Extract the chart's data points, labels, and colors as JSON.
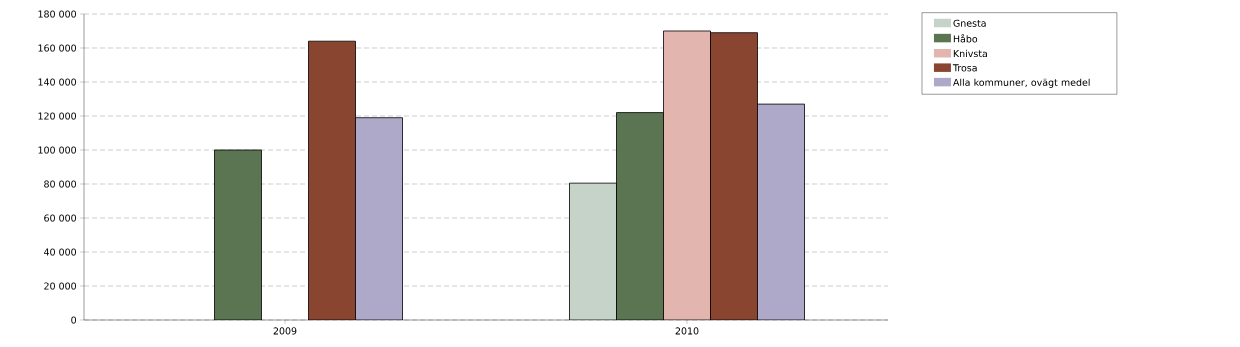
{
  "chart_data": {
    "type": "bar",
    "categories": [
      "2009",
      "2010"
    ],
    "series": [
      {
        "name": "Gnesta",
        "color": "#c5d3c8",
        "values": [
          null,
          80500
        ]
      },
      {
        "name": "Håbo",
        "color": "#5b7553",
        "values": [
          100000,
          122000
        ]
      },
      {
        "name": "Knivsta",
        "color": "#e2b5ae",
        "values": [
          null,
          170000
        ]
      },
      {
        "name": "Trosa",
        "color": "#8a4530",
        "values": [
          164000,
          169000
        ]
      },
      {
        "name": "Alla kommuner, ovägt medel",
        "color": "#aea8c9",
        "values": [
          119000,
          127000
        ]
      }
    ],
    "ylim": [
      0,
      180000
    ],
    "yticks": [
      {
        "value": 0,
        "label": "0"
      },
      {
        "value": 20000,
        "label": "20 000"
      },
      {
        "value": 40000,
        "label": "40 000"
      },
      {
        "value": 60000,
        "label": "60 000"
      },
      {
        "value": 80000,
        "label": "80 000"
      },
      {
        "value": 100000,
        "label": "100 000"
      },
      {
        "value": 120000,
        "label": "120 000"
      },
      {
        "value": 140000,
        "label": "140 000"
      },
      {
        "value": 160000,
        "label": "160 000"
      },
      {
        "value": 180000,
        "label": "180 000"
      }
    ],
    "grid": "y",
    "legend": "right"
  }
}
